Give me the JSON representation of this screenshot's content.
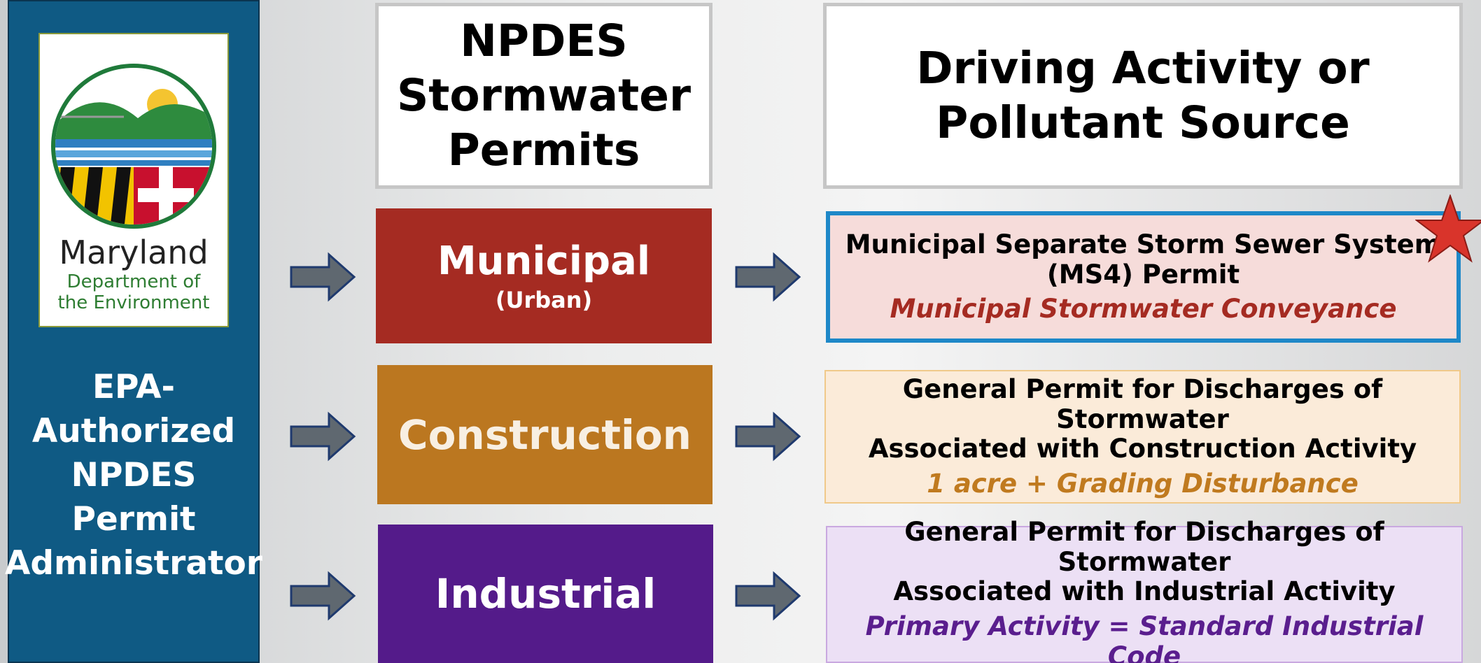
{
  "logo": {
    "name": "Maryland",
    "department": [
      "Department of",
      "the Environment"
    ]
  },
  "sidebar": {
    "lines": [
      "EPA-",
      "Authorized",
      "NPDES",
      "Permit",
      "Administrator"
    ]
  },
  "headers": {
    "permits": [
      "NPDES",
      "Stormwater",
      "Permits"
    ],
    "source": [
      "Driving Activity or",
      "Pollutant Source"
    ]
  },
  "rows": [
    {
      "permit": "Municipal",
      "qualifier": "(Urban)",
      "description": [
        "Municipal Separate Storm Sewer System",
        "(MS4) Permit"
      ],
      "criterion": "Municipal Stormwater Conveyance"
    },
    {
      "permit": "Construction",
      "description": [
        "General Permit for Discharges of Stormwater",
        "Associated with Construction Activity"
      ],
      "criterion": "1 acre + Grading Disturbance"
    },
    {
      "permit": "Industrial",
      "description": [
        "General Permit for Discharges of Stormwater",
        "Associated with Industrial Activity"
      ],
      "criterion": "Primary Activity = Standard Industrial Code"
    }
  ]
}
